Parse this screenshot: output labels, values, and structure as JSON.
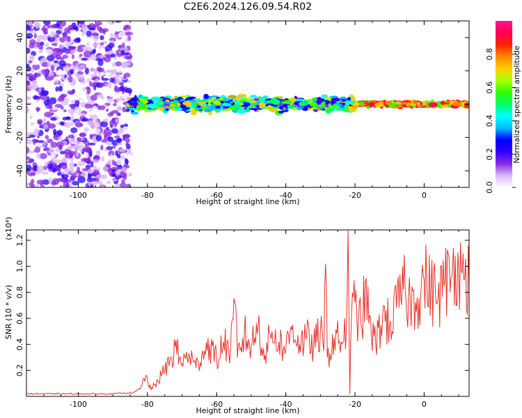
{
  "figure_title": "C2E6.2024.126.09.54.R02",
  "chart_data": [
    {
      "type": "heatmap",
      "name": "spectrogram",
      "xlabel": "Height of straight line (km)",
      "ylabel": "Frequency (Hz)",
      "xlim": [
        -115,
        13
      ],
      "ylim": [
        -50,
        50
      ],
      "xticks": [
        -100,
        -80,
        -60,
        -40,
        -20,
        0
      ],
      "yticks": [
        -40,
        -20,
        0,
        20,
        40
      ],
      "colorbar": {
        "label": "Normalized spectral amplitude",
        "range": [
          0.0,
          1.0
        ],
        "ticks": [
          0.0,
          0.2,
          0.4,
          0.6,
          0.8
        ],
        "tick_labels": [
          "0.0",
          "0.2",
          "0.4",
          "0.6",
          "0.8"
        ],
        "colormap": [
          "#ffffff",
          "#d9b8f8",
          "#8a2be2",
          "#2b00ff",
          "#0000ff",
          "#00c0ff",
          "#00ffff",
          "#00ff66",
          "#33ff00",
          "#aaff00",
          "#ffcc00",
          "#ff8800",
          "#ff2200",
          "#ff0055",
          "#ff1493"
        ]
      },
      "description_regions": [
        {
          "x_range": [
            -115,
            -85
          ],
          "freq_range": [
            -50,
            50
          ],
          "amplitude": [
            0.05,
            0.25
          ]
        },
        {
          "x_range": [
            -85,
            -20
          ],
          "freq_range": [
            -6,
            6
          ],
          "amplitude": [
            0.2,
            0.8
          ]
        },
        {
          "x_range": [
            -20,
            13
          ],
          "freq_range": [
            -2,
            2
          ],
          "amplitude": [
            0.6,
            1.0
          ]
        }
      ]
    },
    {
      "type": "line",
      "name": "snr",
      "xlabel": "Height of straight line (km)",
      "ylabel": "SNR (10 * v/v)",
      "y_multiplier_label": "(x10⁴)",
      "xlim": [
        -115,
        13
      ],
      "ylim": [
        0,
        1.28
      ],
      "xticks": [
        -100,
        -80,
        -60,
        -40,
        -20,
        0
      ],
      "yticks": [
        0.2,
        0.4,
        0.6,
        0.8,
        1.0,
        1.2
      ],
      "color": "#e8302a",
      "series": [
        {
          "x": [
            -115,
            -100,
            -90,
            -84,
            -82,
            -80.5,
            -79,
            -77,
            -75,
            -73,
            -72,
            -70,
            -68,
            -66,
            -64,
            -62,
            -60,
            -58,
            -56,
            -54.5,
            -54,
            -52,
            -50,
            -48,
            -46,
            -44,
            -42,
            -40,
            -38,
            -36,
            -34,
            -32,
            -30,
            -29,
            -28.5,
            -28,
            -26,
            -24,
            -22.5,
            -22,
            -21.5,
            -21,
            -20,
            -18,
            -17,
            -16,
            -14,
            -12,
            -10,
            -8,
            -6,
            -4,
            -2,
            0,
            2,
            4,
            6,
            8,
            9,
            10,
            11,
            12,
            13
          ],
          "y": [
            0.02,
            0.02,
            0.02,
            0.03,
            0.06,
            0.16,
            0.05,
            0.12,
            0.2,
            0.3,
            0.38,
            0.25,
            0.33,
            0.22,
            0.35,
            0.4,
            0.28,
            0.42,
            0.35,
            0.7,
            0.3,
            0.48,
            0.38,
            0.55,
            0.32,
            0.5,
            0.42,
            0.36,
            0.55,
            0.4,
            0.45,
            0.38,
            0.5,
            0.35,
            1.02,
            0.3,
            0.45,
            0.42,
            0.5,
            1.28,
            0.02,
            0.62,
            0.72,
            0.52,
            0.88,
            0.56,
            0.4,
            0.62,
            0.55,
            0.68,
            0.82,
            0.72,
            0.76,
            0.9,
            0.82,
            0.76,
            0.88,
            0.92,
            1.08,
            0.98,
            0.95,
            1.06,
            0.86
          ]
        }
      ]
    }
  ]
}
